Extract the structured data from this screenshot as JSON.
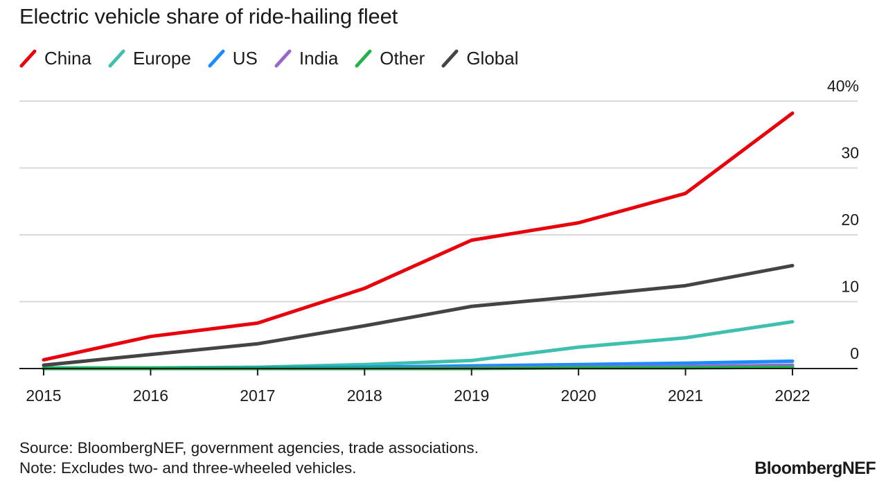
{
  "chart_data": {
    "type": "line",
    "title": "Electric vehicle share of ride-hailing fleet",
    "x": [
      2015,
      2016,
      2017,
      2018,
      2019,
      2020,
      2021,
      2022
    ],
    "ylim": [
      0,
      40
    ],
    "y_ticks": [
      0,
      10,
      20,
      30,
      40
    ],
    "y_tick_labels": [
      "0",
      "10",
      "20",
      "30",
      "40%"
    ],
    "grid": true,
    "legend_position": "top-left",
    "series": [
      {
        "name": "China",
        "color": "#e8000b",
        "values": [
          1.3,
          4.8,
          6.8,
          12.0,
          19.2,
          21.8,
          26.2,
          38.2
        ]
      },
      {
        "name": "Europe",
        "color": "#3fbfad",
        "values": [
          0.1,
          0.1,
          0.2,
          0.6,
          1.2,
          3.2,
          4.6,
          7.0
        ]
      },
      {
        "name": "US",
        "color": "#1a8cff",
        "values": [
          0.0,
          0.0,
          0.1,
          0.2,
          0.4,
          0.6,
          0.8,
          1.1
        ]
      },
      {
        "name": "India",
        "color": "#9966cc",
        "values": [
          0.0,
          0.0,
          0.0,
          0.0,
          0.1,
          0.2,
          0.3,
          0.5
        ]
      },
      {
        "name": "Other",
        "color": "#22b14c",
        "values": [
          0.0,
          0.0,
          0.0,
          0.0,
          0.0,
          0.1,
          0.1,
          0.2
        ]
      },
      {
        "name": "Global",
        "color": "#444444",
        "values": [
          0.5,
          2.1,
          3.7,
          6.4,
          9.3,
          10.8,
          12.4,
          15.4
        ]
      }
    ]
  },
  "footer": {
    "source": "Source: BloombergNEF, government agencies, trade associations.",
    "note": "Note: Excludes two- and three-wheeled vehicles."
  },
  "brand": "BloombergNEF"
}
